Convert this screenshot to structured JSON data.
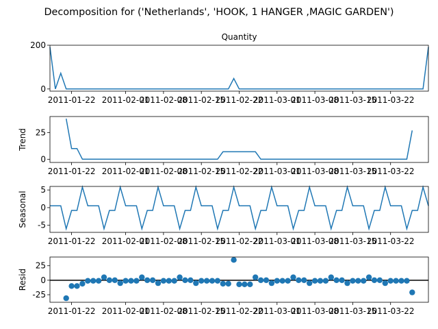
{
  "title": "Decomposition for ('Netherlands', 'HOOK, 1 HANGER ,MAGIC GARDEN')",
  "colors": {
    "line": "#1f77b4",
    "axis": "#000000"
  },
  "chart_data": [
    {
      "type": "line",
      "title": "Quantity",
      "ylabel": "",
      "ylim": [
        -10,
        200
      ],
      "yticks": [
        0,
        200
      ],
      "xticks": [
        "2011-01-22",
        "2011-02-01",
        "2011-02-08",
        "2011-02-15",
        "2011-02-22",
        "2011-03-01",
        "2011-03-08",
        "2011-03-15",
        "2011-03-22"
      ],
      "x": [
        "2011-01-18",
        "2011-01-19",
        "2011-01-20",
        "2011-01-21",
        "2011-01-22",
        "2011-01-23",
        "2011-01-24",
        "2011-01-25",
        "2011-01-26",
        "2011-01-27",
        "2011-01-28",
        "2011-01-29",
        "2011-01-30",
        "2011-01-31",
        "2011-02-01",
        "2011-02-02",
        "2011-02-03",
        "2011-02-04",
        "2011-02-05",
        "2011-02-06",
        "2011-02-07",
        "2011-02-08",
        "2011-02-09",
        "2011-02-10",
        "2011-02-11",
        "2011-02-12",
        "2011-02-13",
        "2011-02-14",
        "2011-02-15",
        "2011-02-16",
        "2011-02-17",
        "2011-02-18",
        "2011-02-19",
        "2011-02-20",
        "2011-02-21",
        "2011-02-22",
        "2011-02-23",
        "2011-02-24",
        "2011-02-25",
        "2011-02-26",
        "2011-02-27",
        "2011-02-28",
        "2011-03-01",
        "2011-03-02",
        "2011-03-03",
        "2011-03-04",
        "2011-03-05",
        "2011-03-06",
        "2011-03-07",
        "2011-03-08",
        "2011-03-09",
        "2011-03-10",
        "2011-03-11",
        "2011-03-12",
        "2011-03-13",
        "2011-03-14",
        "2011-03-15",
        "2011-03-16",
        "2011-03-17",
        "2011-03-18",
        "2011-03-19",
        "2011-03-20",
        "2011-03-21",
        "2011-03-22",
        "2011-03-23",
        "2011-03-24",
        "2011-03-25",
        "2011-03-26",
        "2011-03-27",
        "2011-03-28",
        "2011-03-29"
      ],
      "values": [
        192,
        0,
        72,
        0,
        0,
        0,
        0,
        0,
        0,
        0,
        0,
        0,
        0,
        0,
        0,
        0,
        0,
        0,
        0,
        0,
        0,
        0,
        0,
        0,
        0,
        0,
        0,
        0,
        0,
        0,
        0,
        0,
        0,
        0,
        48,
        0,
        0,
        0,
        0,
        0,
        0,
        0,
        0,
        0,
        0,
        0,
        0,
        0,
        0,
        0,
        0,
        0,
        0,
        0,
        0,
        0,
        0,
        0,
        0,
        0,
        0,
        0,
        0,
        0,
        0,
        0,
        0,
        0,
        0,
        0,
        192
      ],
      "style": "line"
    },
    {
      "type": "line",
      "title": "",
      "ylabel": "Trend",
      "ylim": [
        -3,
        40
      ],
      "yticks": [
        0,
        25
      ],
      "xticks": [
        "2011-01-22",
        "2011-02-01",
        "2011-02-08",
        "2011-02-15",
        "2011-02-22",
        "2011-03-01",
        "2011-03-08",
        "2011-03-15",
        "2011-03-22"
      ],
      "x": [
        "2011-01-21",
        "2011-01-22",
        "2011-01-23",
        "2011-01-24",
        "2011-01-25",
        "2011-01-26",
        "2011-01-27",
        "2011-01-28",
        "2011-01-29",
        "2011-01-30",
        "2011-01-31",
        "2011-02-01",
        "2011-02-02",
        "2011-02-03",
        "2011-02-04",
        "2011-02-05",
        "2011-02-06",
        "2011-02-07",
        "2011-02-08",
        "2011-02-09",
        "2011-02-10",
        "2011-02-11",
        "2011-02-12",
        "2011-02-13",
        "2011-02-14",
        "2011-02-15",
        "2011-02-16",
        "2011-02-17",
        "2011-02-18",
        "2011-02-19",
        "2011-02-20",
        "2011-02-21",
        "2011-02-22",
        "2011-02-23",
        "2011-02-24",
        "2011-02-25",
        "2011-02-26",
        "2011-02-27",
        "2011-02-28",
        "2011-03-01",
        "2011-03-02",
        "2011-03-03",
        "2011-03-04",
        "2011-03-05",
        "2011-03-06",
        "2011-03-07",
        "2011-03-08",
        "2011-03-09",
        "2011-03-10",
        "2011-03-11",
        "2011-03-12",
        "2011-03-13",
        "2011-03-14",
        "2011-03-15",
        "2011-03-16",
        "2011-03-17",
        "2011-03-18",
        "2011-03-19",
        "2011-03-20",
        "2011-03-21",
        "2011-03-22",
        "2011-03-23",
        "2011-03-24",
        "2011-03-25",
        "2011-03-26"
      ],
      "values": [
        38,
        10,
        10,
        0,
        0,
        0,
        0,
        0,
        0,
        0,
        0,
        0,
        0,
        0,
        0,
        0,
        0,
        0,
        0,
        0,
        0,
        0,
        0,
        0,
        0,
        0,
        0,
        0,
        0,
        7,
        7,
        7,
        7,
        7,
        7,
        7,
        0,
        0,
        0,
        0,
        0,
        0,
        0,
        0,
        0,
        0,
        0,
        0,
        0,
        0,
        0,
        0,
        0,
        0,
        0,
        0,
        0,
        0,
        0,
        0,
        0,
        0,
        0,
        0,
        27
      ],
      "style": "line"
    },
    {
      "type": "line",
      "title": "",
      "ylabel": "Seasonal",
      "ylim": [
        -7,
        6
      ],
      "yticks": [
        -5,
        0,
        5
      ],
      "xticks": [
        "2011-01-22",
        "2011-02-01",
        "2011-02-08",
        "2011-02-15",
        "2011-02-22",
        "2011-03-01",
        "2011-03-08",
        "2011-03-15",
        "2011-03-22"
      ],
      "x": [
        "2011-01-18",
        "2011-01-19",
        "2011-01-20",
        "2011-01-21",
        "2011-01-22",
        "2011-01-23",
        "2011-01-24",
        "2011-01-25",
        "2011-01-26",
        "2011-01-27",
        "2011-01-28",
        "2011-01-29",
        "2011-01-30",
        "2011-01-31",
        "2011-02-01",
        "2011-02-02",
        "2011-02-03",
        "2011-02-04",
        "2011-02-05",
        "2011-02-06",
        "2011-02-07",
        "2011-02-08",
        "2011-02-09",
        "2011-02-10",
        "2011-02-11",
        "2011-02-12",
        "2011-02-13",
        "2011-02-14",
        "2011-02-15",
        "2011-02-16",
        "2011-02-17",
        "2011-02-18",
        "2011-02-19",
        "2011-02-20",
        "2011-02-21",
        "2011-02-22",
        "2011-02-23",
        "2011-02-24",
        "2011-02-25",
        "2011-02-26",
        "2011-02-27",
        "2011-02-28",
        "2011-03-01",
        "2011-03-02",
        "2011-03-03",
        "2011-03-04",
        "2011-03-05",
        "2011-03-06",
        "2011-03-07",
        "2011-03-08",
        "2011-03-09",
        "2011-03-10",
        "2011-03-11",
        "2011-03-12",
        "2011-03-13",
        "2011-03-14",
        "2011-03-15",
        "2011-03-16",
        "2011-03-17",
        "2011-03-18",
        "2011-03-19",
        "2011-03-20",
        "2011-03-21",
        "2011-03-22",
        "2011-03-23",
        "2011-03-24",
        "2011-03-25",
        "2011-03-26",
        "2011-03-27",
        "2011-03-28",
        "2011-03-29"
      ],
      "values": [
        0.5,
        0.5,
        0.5,
        -6,
        -0.8,
        -0.8,
        5.8,
        0.5,
        0.5,
        0.5,
        -6,
        -0.8,
        -0.8,
        5.8,
        0.5,
        0.5,
        0.5,
        -6,
        -0.8,
        -0.8,
        5.8,
        0.5,
        0.5,
        0.5,
        -6,
        -0.8,
        -0.8,
        5.8,
        0.5,
        0.5,
        0.5,
        -6,
        -0.8,
        -0.8,
        5.8,
        0.5,
        0.5,
        0.5,
        -6,
        -0.8,
        -0.8,
        5.8,
        0.5,
        0.5,
        0.5,
        -6,
        -0.8,
        -0.8,
        5.8,
        0.5,
        0.5,
        0.5,
        -6,
        -0.8,
        -0.8,
        5.8,
        0.5,
        0.5,
        0.5,
        -6,
        -0.8,
        -0.8,
        5.8,
        0.5,
        0.5,
        0.5,
        -6,
        -0.8,
        -0.8,
        5.8,
        0.5
      ],
      "style": "line"
    },
    {
      "type": "scatter",
      "title": "",
      "ylabel": "Resid",
      "ylim": [
        -38,
        40
      ],
      "yticks": [
        -25,
        0,
        25
      ],
      "zero_line": true,
      "xticks": [
        "2011-01-22",
        "2011-02-01",
        "2011-02-08",
        "2011-02-15",
        "2011-02-22",
        "2011-03-01",
        "2011-03-08",
        "2011-03-15",
        "2011-03-22"
      ],
      "x": [
        "2011-01-21",
        "2011-01-22",
        "2011-01-23",
        "2011-01-24",
        "2011-01-25",
        "2011-01-26",
        "2011-01-27",
        "2011-01-28",
        "2011-01-29",
        "2011-01-30",
        "2011-01-31",
        "2011-02-01",
        "2011-02-02",
        "2011-02-03",
        "2011-02-04",
        "2011-02-05",
        "2011-02-06",
        "2011-02-07",
        "2011-02-08",
        "2011-02-09",
        "2011-02-10",
        "2011-02-11",
        "2011-02-12",
        "2011-02-13",
        "2011-02-14",
        "2011-02-15",
        "2011-02-16",
        "2011-02-17",
        "2011-02-18",
        "2011-02-19",
        "2011-02-20",
        "2011-02-21",
        "2011-02-22",
        "2011-02-23",
        "2011-02-24",
        "2011-02-25",
        "2011-02-26",
        "2011-02-27",
        "2011-02-28",
        "2011-03-01",
        "2011-03-02",
        "2011-03-03",
        "2011-03-04",
        "2011-03-05",
        "2011-03-06",
        "2011-03-07",
        "2011-03-08",
        "2011-03-09",
        "2011-03-10",
        "2011-03-11",
        "2011-03-12",
        "2011-03-13",
        "2011-03-14",
        "2011-03-15",
        "2011-03-16",
        "2011-03-17",
        "2011-03-18",
        "2011-03-19",
        "2011-03-20",
        "2011-03-21",
        "2011-03-22",
        "2011-03-23",
        "2011-03-24",
        "2011-03-25",
        "2011-03-26"
      ],
      "values": [
        -31,
        -10,
        -10,
        -6,
        -1,
        -1,
        -1,
        5,
        0,
        0,
        -5,
        -1,
        -1,
        -1,
        5,
        0,
        0,
        -5,
        -1,
        -1,
        -1,
        5,
        0,
        0,
        -5,
        -1,
        -1,
        -1,
        -1,
        -6,
        -6,
        35,
        -7,
        -7,
        -7,
        5,
        0,
        0,
        -5,
        -1,
        -1,
        -1,
        5,
        0,
        0,
        -5,
        -1,
        -1,
        -1,
        5,
        0,
        0,
        -5,
        -1,
        -1,
        -1,
        5,
        0,
        0,
        -5,
        -1,
        -1,
        -1,
        -1,
        -21
      ],
      "style": "scatter"
    }
  ]
}
